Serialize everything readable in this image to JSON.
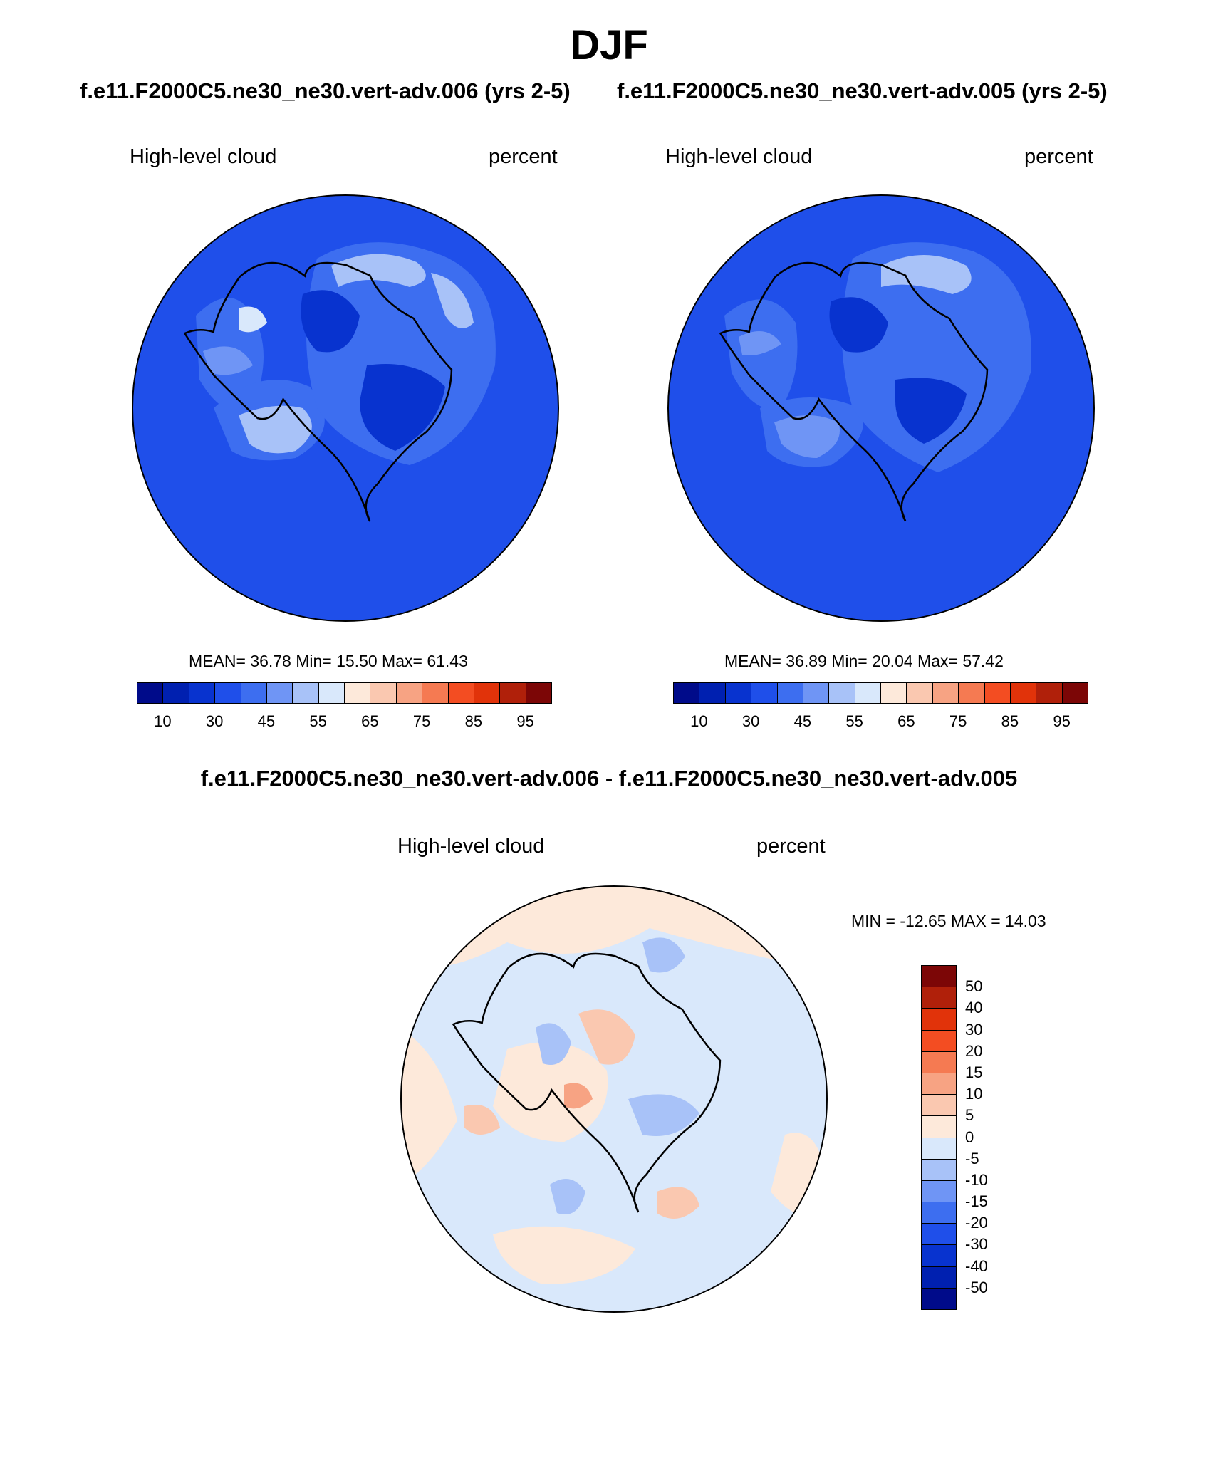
{
  "figure": {
    "title": "DJF",
    "subtitles": [
      "f.e11.F2000C5.ne30_ne30.vert-adv.006 (yrs 2-5)",
      "f.e11.F2000C5.ne30_ne30.vert-adv.005 (yrs 2-5)"
    ],
    "diff_title": "f.e11.F2000C5.ne30_ne30.vert-adv.006 - f.e11.F2000C5.ne30_ne30.vert-adv.005"
  },
  "panels": [
    {
      "variable": "High-level cloud",
      "units": "percent",
      "stats_text": "MEAN=  36.78  Min=  15.50  Max=  61.43"
    },
    {
      "variable": "High-level cloud",
      "units": "percent",
      "stats_text": "MEAN=  36.89  Min=  20.04  Max=  57.42"
    }
  ],
  "diff_panel": {
    "variable": "High-level cloud",
    "units": "percent",
    "stats_text": "MIN = -12.65 MAX =  14.03"
  },
  "colorbar_abs": {
    "colors": [
      "#000b8a",
      "#0020b0",
      "#0833cf",
      "#1f4fea",
      "#3d6ef0",
      "#6f95f5",
      "#a8c2f8",
      "#d9e8fb",
      "#fde9da",
      "#fac8b0",
      "#f7a383",
      "#f57a52",
      "#f34d22",
      "#e1330a",
      "#b0200a",
      "#7c0606"
    ],
    "labels": [
      "10",
      "30",
      "45",
      "55",
      "65",
      "75",
      "85",
      "95"
    ]
  },
  "colorbar_diff": {
    "colors": [
      "#7c0606",
      "#b0200a",
      "#e1330a",
      "#f34d22",
      "#f57a52",
      "#f7a383",
      "#fac8b0",
      "#fde9da",
      "#d9e8fb",
      "#a8c2f8",
      "#6f95f5",
      "#3d6ef0",
      "#1f4fea",
      "#0833cf",
      "#0020b0",
      "#000b8a"
    ],
    "labels": [
      "50",
      "40",
      "30",
      "20",
      "15",
      "10",
      "5",
      "0",
      "-5",
      "-10",
      "-15",
      "-20",
      "-30",
      "-40",
      "-50"
    ]
  },
  "map_colors": {
    "base_abs": "#1f4fea",
    "base_diff": "#d9e8fb",
    "coast": "#000000"
  }
}
